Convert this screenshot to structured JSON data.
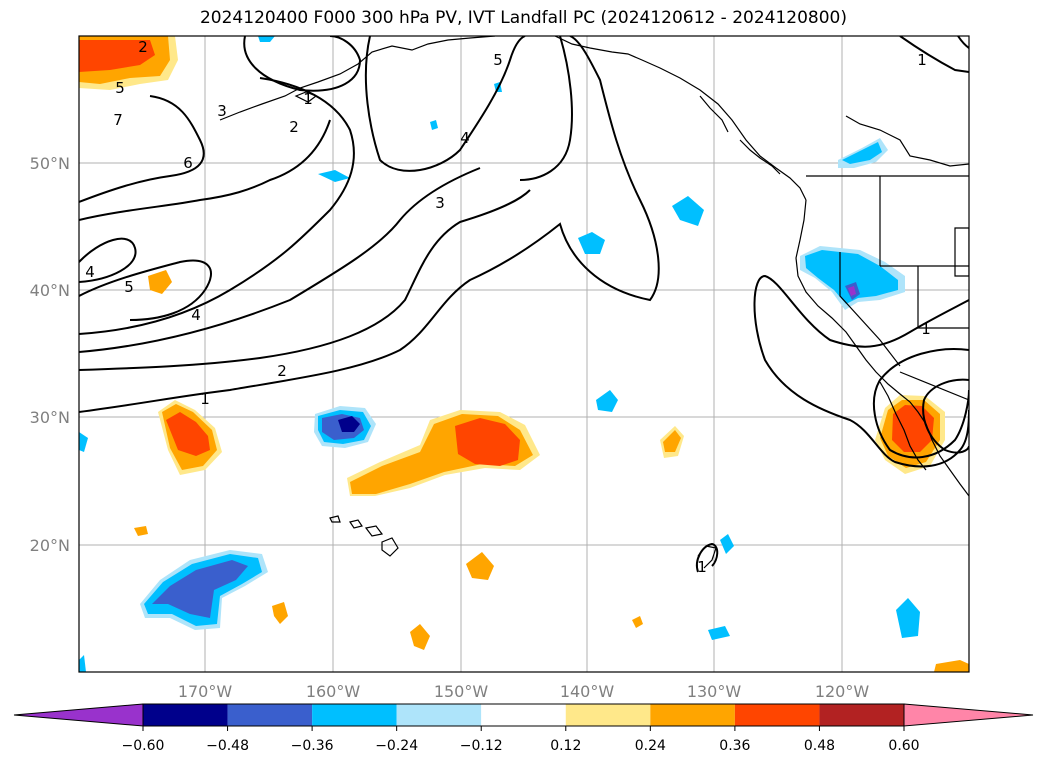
{
  "title": "2024120400 F000 300 hPa PV, IVT Landfall PC (2024120612 - 2024120800)",
  "map": {
    "lon_labels": [
      "170°W",
      "160°W",
      "150°W",
      "140°W",
      "130°W",
      "120°W"
    ],
    "lat_labels": [
      "50°N",
      "40°N",
      "30°N",
      "20°N"
    ],
    "contour_labels": [
      "2",
      "5",
      "7",
      "6",
      "3",
      "2",
      "1",
      "4",
      "5",
      "3",
      "4",
      "5",
      "4",
      "2",
      "1",
      "1",
      "1",
      "1"
    ]
  },
  "colorbar": {
    "ticks": [
      "−0.60",
      "−0.48",
      "−0.36",
      "−0.24",
      "−0.12",
      "0.12",
      "0.24",
      "0.36",
      "0.48",
      "0.60"
    ],
    "colors": [
      "#9932cc",
      "#00008b",
      "#3a5fcd",
      "#00bfff",
      "#aee4fa",
      "#ffffff",
      "#ffe88a",
      "#ffa500",
      "#ff4500",
      "#b22222",
      "#ff85a8"
    ]
  }
}
